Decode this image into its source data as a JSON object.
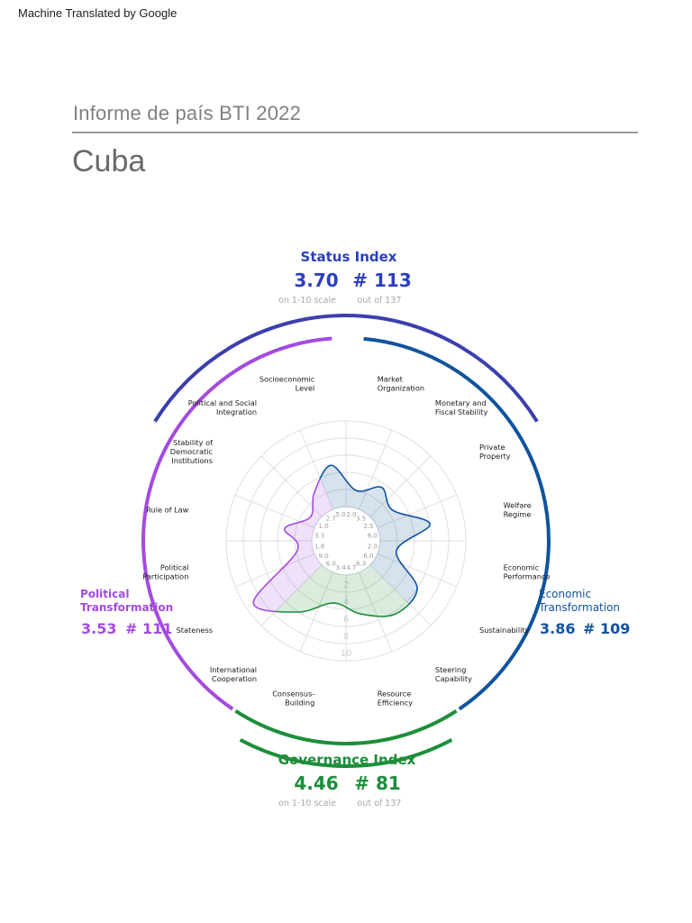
{
  "header": {
    "machine_translated": "Machine Translated by Google",
    "report_title": "Informe de país BTI 2022",
    "country": "Cuba"
  },
  "indices": {
    "status": {
      "title": "Status Index",
      "score": "3.70",
      "rank": "# 113",
      "score_note": "on 1-10 scale",
      "rank_note": "out of 137",
      "color": "#2d3fbf"
    },
    "political": {
      "title_line1": "Political",
      "title_line2": "Transformation",
      "score": "3.53",
      "rank": "# 111",
      "color": "#a34be0"
    },
    "economic": {
      "title_line1": "Economic",
      "title_line2": "Transformation",
      "score": "3.86",
      "rank": "# 109",
      "color": "#10539e"
    },
    "governance": {
      "title": "Governance Index",
      "score": "4.46",
      "rank": "# 81",
      "score_note": "on 1-10 scale",
      "rank_note": "out of 137",
      "color": "#1c8e3a"
    }
  },
  "chart_data": {
    "type": "radar",
    "scale_labels": [
      "2",
      "4",
      "6",
      "8",
      "10"
    ],
    "colors": {
      "economic": "#10539e",
      "political": "#a34be0",
      "governance": "#1c8e3a"
    },
    "criteria": [
      {
        "group": "economic",
        "label": [
          "Market",
          "Organization"
        ],
        "value": 2.0
      },
      {
        "group": "economic",
        "label": [
          "Monetary and",
          "Fiscal Stability"
        ],
        "value": 3.5
      },
      {
        "group": "economic",
        "label": [
          "Private",
          "Property"
        ],
        "value": 2.5
      },
      {
        "group": "economic",
        "label": [
          "Welfare",
          "Regime"
        ],
        "value": 6.0
      },
      {
        "group": "economic",
        "label": [
          "Economic",
          "Performance"
        ],
        "value": 2.0
      },
      {
        "group": "economic",
        "label": [
          "Sustainability"
        ],
        "value": 6.0
      },
      {
        "group": "governance",
        "label": [
          "Steering",
          "Capability"
        ],
        "value": 6.3
      },
      {
        "group": "governance",
        "label": [
          "Resource",
          "Efficiency"
        ],
        "value": 4.7
      },
      {
        "group": "governance",
        "label": [
          "Consensus-",
          "Building"
        ],
        "value": 3.4
      },
      {
        "group": "governance",
        "label": [
          "International",
          "Cooperation"
        ],
        "value": 6.0
      },
      {
        "group": "political",
        "label": [
          "Stateness"
        ],
        "value": 9.0
      },
      {
        "group": "political",
        "label": [
          "Political",
          "Participation"
        ],
        "value": 1.8
      },
      {
        "group": "political",
        "label": [
          "Rule of Law"
        ],
        "value": 3.3
      },
      {
        "group": "political",
        "label": [
          "Stability of",
          "Democratic",
          "Institutions"
        ],
        "value": 1.0
      },
      {
        "group": "political",
        "label": [
          "Political and Social",
          "Integration"
        ],
        "value": 2.7
      },
      {
        "group": "economic",
        "label": [
          "Socioeconomic",
          "Level"
        ],
        "value": 5.0
      }
    ]
  }
}
